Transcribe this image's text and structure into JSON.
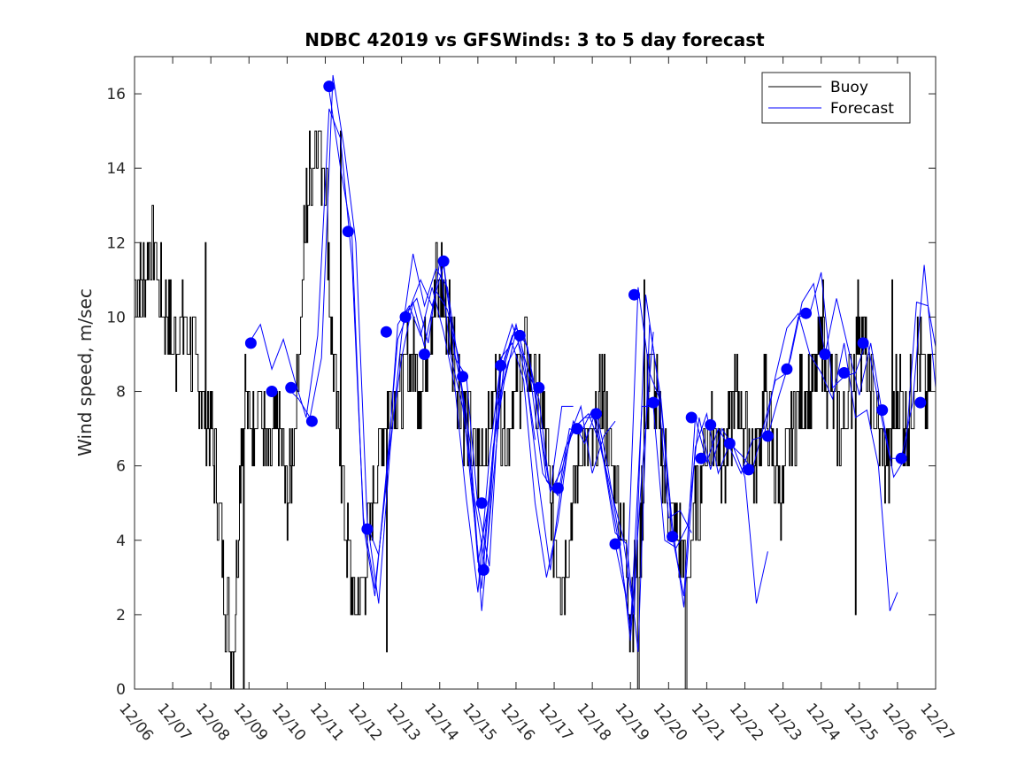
{
  "chart_data": {
    "type": "line",
    "title": "NDBC 42019 vs GFSWinds: 3 to 5 day forecast",
    "xlabel": "",
    "ylabel": "Wind speed, m/sec",
    "ylim": [
      0,
      17
    ],
    "xlim": [
      0,
      21
    ],
    "yticks": [
      0,
      2,
      4,
      6,
      8,
      10,
      12,
      14,
      16
    ],
    "xtick_labels": [
      "12/06",
      "12/07",
      "12/08",
      "12/09",
      "12/10",
      "12/11",
      "12/12",
      "12/13",
      "12/14",
      "12/15",
      "12/16",
      "12/17",
      "12/18",
      "12/19",
      "12/20",
      "12/21",
      "12/22",
      "12/23",
      "12/24",
      "12/25",
      "12/26",
      "12/27"
    ],
    "legend": {
      "position": "top-right",
      "entries": [
        "Buoy",
        "Forecast"
      ]
    },
    "colors": {
      "buoy": "#000000",
      "forecast": "#0000ff",
      "marker": "#0000ff",
      "axis": "#262626"
    },
    "buoy": {
      "name": "Buoy",
      "x": [
        0,
        0.25,
        0.5,
        0.75,
        0.9,
        1.0,
        1.25,
        1.5,
        1.75,
        2.0,
        2.2,
        2.4,
        2.6,
        2.7,
        2.8,
        2.9,
        3.0,
        3.25,
        3.5,
        3.75,
        4.0,
        4.25,
        4.5,
        4.75,
        5.0,
        5.1,
        5.25,
        5.5,
        5.75,
        6.0,
        6.25,
        6.5,
        6.75,
        7.0,
        7.25,
        7.5,
        7.75,
        8.0,
        8.25,
        8.5,
        8.75,
        9.0,
        9.25,
        9.5,
        9.75,
        10.0,
        10.25,
        10.5,
        10.75,
        11.0,
        11.25,
        11.5,
        11.75,
        12.0,
        12.25,
        12.5,
        12.75,
        13.0,
        13.25,
        13.5,
        13.75,
        14.0,
        14.25,
        14.5,
        14.75,
        15.0,
        15.25,
        15.5,
        15.75,
        16.0,
        16.25,
        16.5,
        16.75,
        17.0,
        17.25,
        17.5,
        17.75,
        18.0,
        18.25,
        18.5,
        18.75,
        19.0,
        19.25,
        19.5,
        19.75,
        20.0,
        20.25,
        20.5,
        20.75,
        21.0
      ],
      "values": [
        11,
        11,
        12,
        10,
        10,
        9,
        10,
        9,
        8,
        7,
        5,
        2,
        1,
        4,
        7,
        8,
        7,
        8,
        6,
        7,
        5,
        8,
        13,
        15,
        14,
        11,
        8,
        5,
        2,
        3,
        5,
        7,
        8,
        8,
        9,
        8,
        10,
        11,
        10,
        8,
        7,
        6,
        7,
        8,
        7,
        8,
        9,
        8,
        7,
        4,
        3,
        5,
        7,
        6,
        8,
        6,
        5,
        2,
        4,
        9,
        7,
        5,
        4,
        3,
        5,
        7,
        7,
        6,
        8,
        7,
        6,
        8,
        6,
        5,
        7,
        8,
        8,
        9,
        8,
        7,
        8,
        10,
        8,
        7,
        6,
        8,
        7,
        9,
        8,
        9
      ],
      "extremes": [
        [
          0.55,
          12.0
        ],
        [
          1.85,
          12.0
        ],
        [
          2.85,
          0.0
        ],
        [
          5.4,
          15.0
        ],
        [
          6.6,
          1.0
        ],
        [
          7.9,
          12.0
        ],
        [
          13.2,
          0.0
        ],
        [
          13.35,
          11.0
        ],
        [
          14.45,
          0.0
        ],
        [
          18.05,
          11.0
        ],
        [
          18.9,
          2.0
        ],
        [
          19.85,
          11.0
        ]
      ]
    },
    "forecast_runs": [
      {
        "x": [
          3.0,
          3.3,
          3.6,
          3.9,
          4.2,
          4.5,
          4.8,
          5.1,
          5.4,
          5.7,
          6.0,
          6.3,
          6.6,
          6.9,
          7.2,
          7.5,
          7.8,
          8.1,
          8.4,
          8.7,
          9.0,
          9.3,
          9.6,
          9.9,
          10.2,
          10.5
        ],
        "values": [
          9.3,
          9.8,
          8.6,
          9.4,
          8.3,
          7.3,
          9.5,
          15.6,
          14.8,
          11.5,
          4.6,
          2.7,
          5.5,
          9.8,
          10.3,
          9.5,
          10.8,
          9.6,
          8.1,
          5.1,
          2.6,
          6.2,
          8.8,
          9.8,
          8.9,
          6.7
        ]
      },
      {
        "x": [
          4.0,
          4.3,
          4.6,
          4.9,
          5.2,
          5.5,
          5.8,
          6.1,
          6.4,
          6.7,
          7.0,
          7.3,
          7.6,
          7.9,
          8.2,
          8.5,
          8.8,
          9.1,
          9.4,
          9.7,
          10.0,
          10.3,
          10.6,
          10.9,
          11.2,
          11.5
        ],
        "values": [
          8.1,
          7.8,
          7.3,
          8.9,
          16.5,
          14.5,
          12.0,
          4.5,
          2.3,
          6.4,
          9.5,
          11.7,
          10.3,
          11.3,
          10.8,
          8.7,
          6.6,
          2.1,
          5.6,
          8.9,
          9.7,
          9.2,
          7.2,
          5.3,
          7.6,
          7.6
        ]
      },
      {
        "x": [
          5.1,
          5.4,
          5.7,
          6.0,
          6.3,
          6.6,
          6.9,
          7.2,
          7.5,
          7.8,
          8.1,
          8.4,
          8.7,
          9.0,
          9.3,
          9.6,
          9.9,
          10.2,
          10.5,
          10.8,
          11.1,
          11.4,
          11.7,
          12.0,
          12.3,
          12.6
        ],
        "values": [
          16.1,
          14.0,
          12.2,
          4.4,
          2.5,
          5.8,
          9.4,
          10.2,
          11.0,
          10.3,
          11.4,
          9.0,
          7.4,
          3.4,
          5.1,
          8.9,
          9.3,
          8.3,
          5.0,
          3.0,
          4.5,
          6.8,
          7.6,
          5.8,
          6.8,
          7.2
        ]
      },
      {
        "x": [
          6.1,
          6.4,
          6.7,
          7.0,
          7.3,
          7.6,
          7.9,
          8.2,
          8.5,
          8.8,
          9.1,
          9.4,
          9.7,
          10.0,
          10.3,
          10.6,
          10.9,
          11.2,
          11.5,
          11.8,
          12.1,
          12.4,
          12.7,
          13.0,
          13.3,
          13.6
        ],
        "values": [
          4.4,
          3.6,
          6.6,
          8.9,
          10.4,
          9.2,
          10.7,
          10.2,
          8.9,
          5.7,
          2.7,
          6.5,
          8.3,
          9.6,
          8.1,
          5.5,
          3.2,
          5.6,
          7.2,
          6.6,
          7.5,
          6.0,
          4.1,
          1.3,
          5.8,
          9.6
        ]
      },
      {
        "x": [
          7.1,
          7.4,
          7.7,
          8.0,
          8.3,
          8.6,
          8.9,
          9.2,
          9.5,
          9.8,
          10.1,
          10.4,
          10.7,
          11.0,
          11.3,
          11.6,
          11.9,
          12.2,
          12.5,
          12.8,
          13.1,
          13.4,
          13.7,
          14.0,
          14.3,
          14.6
        ],
        "values": [
          10.1,
          10.5,
          9.3,
          11.5,
          8.9,
          7.6,
          5.2,
          3.2,
          7.6,
          8.8,
          9.4,
          8.2,
          5.8,
          5.3,
          6.5,
          7.1,
          7.4,
          6.6,
          5.3,
          4.1,
          2.0,
          10.6,
          8.4,
          4.6,
          4.8,
          4.2
        ]
      },
      {
        "x": [
          8.1,
          8.4,
          8.7,
          9.0,
          9.3,
          9.6,
          9.9,
          10.2,
          10.5,
          10.8,
          11.1,
          11.4,
          11.7,
          12.0,
          12.3,
          12.6,
          12.9,
          13.2,
          13.5,
          13.8,
          14.1,
          14.4,
          14.7,
          15.0,
          15.3,
          15.6
        ],
        "values": [
          11.5,
          8.9,
          8.4,
          4.9,
          3.3,
          8.5,
          9.5,
          9.6,
          8.1,
          5.6,
          5.2,
          7.0,
          6.9,
          7.5,
          6.1,
          4.2,
          3.9,
          1.0,
          9.8,
          7.8,
          4.4,
          2.2,
          6.5,
          7.4,
          5.8,
          6.6
        ]
      },
      {
        "x": [
          9.1,
          9.4,
          9.7,
          10.0,
          10.3,
          10.6,
          10.9,
          11.2,
          11.5,
          11.8,
          12.1,
          12.4,
          12.7,
          13.0,
          13.3,
          13.6,
          13.9,
          14.2,
          14.5,
          14.8,
          15.1,
          15.4,
          15.7,
          16.0,
          16.3,
          16.6
        ],
        "values": [
          3.2,
          6.4,
          8.7,
          9.8,
          8.6,
          7.8,
          5.3,
          5.9,
          7.0,
          7.3,
          7.3,
          5.6,
          3.9,
          1.6,
          7.6,
          7.6,
          4.0,
          3.8,
          4.4,
          7.3,
          5.9,
          7.0,
          6.5,
          5.7,
          2.3,
          3.7
        ]
      },
      {
        "x": [
          12.6,
          12.9,
          13.2,
          13.5,
          13.8,
          14.1,
          14.4,
          14.7,
          15.0,
          15.3,
          15.6,
          15.9,
          16.2,
          16.5,
          16.8,
          17.1,
          17.4,
          17.7,
          18.0,
          18.3,
          18.6,
          18.9,
          19.2,
          19.5,
          19.8,
          20.0
        ],
        "values": [
          3.9,
          2.4,
          10.8,
          8.5,
          7.7,
          4.1,
          2.5,
          7.3,
          6.1,
          7.0,
          6.5,
          5.8,
          6.7,
          6.8,
          8.4,
          9.7,
          10.1,
          9.0,
          8.5,
          7.8,
          9.3,
          7.3,
          7.5,
          6.0,
          2.1,
          2.6
        ]
      },
      {
        "x": [
          15.6,
          15.9,
          16.2,
          16.5,
          16.8,
          17.1,
          17.4,
          17.7,
          18.0,
          18.3,
          18.6,
          18.9,
          19.2,
          19.5,
          19.8,
          20.1,
          20.4,
          20.7,
          21.0
        ],
        "values": [
          6.6,
          6.3,
          5.9,
          7.1,
          8.3,
          8.5,
          10.0,
          10.1,
          11.2,
          8.1,
          8.4,
          8.5,
          9.4,
          7.7,
          6.2,
          6.2,
          7.7,
          11.4,
          8.1
        ]
      },
      {
        "x": [
          16.6,
          16.9,
          17.2,
          17.5,
          17.8,
          18.1,
          18.4,
          18.7,
          19.0,
          19.3,
          19.6,
          19.9,
          20.2,
          20.5,
          20.8,
          21.0
        ],
        "values": [
          6.8,
          7.9,
          8.9,
          10.4,
          10.9,
          9.0,
          10.5,
          9.2,
          7.9,
          9.3,
          7.4,
          5.7,
          6.2,
          10.4,
          10.3,
          9.2
        ]
      }
    ],
    "markers": {
      "x": [
        3.05,
        3.6,
        4.1,
        4.65,
        5.1,
        5.6,
        6.1,
        6.6,
        7.1,
        7.6,
        8.1,
        8.6,
        9.1,
        9.15,
        9.6,
        10.1,
        10.6,
        11.1,
        11.6,
        12.1,
        12.6,
        13.1,
        13.6,
        14.1,
        14.6,
        14.85,
        15.1,
        15.6,
        16.1,
        16.6,
        17.1,
        17.6,
        18.1,
        18.6,
        19.1,
        19.6,
        20.1,
        20.6
      ],
      "values": [
        9.3,
        8.0,
        8.1,
        7.2,
        16.2,
        12.3,
        4.3,
        9.6,
        10.0,
        9.0,
        11.5,
        8.4,
        5.0,
        3.2,
        8.7,
        9.5,
        8.1,
        5.4,
        7.0,
        7.4,
        3.9,
        10.6,
        7.7,
        4.1,
        7.3,
        6.2,
        7.1,
        6.6,
        5.9,
        6.8,
        8.6,
        10.1,
        9.0,
        8.5,
        9.3,
        7.5,
        6.2,
        7.7
      ]
    }
  }
}
